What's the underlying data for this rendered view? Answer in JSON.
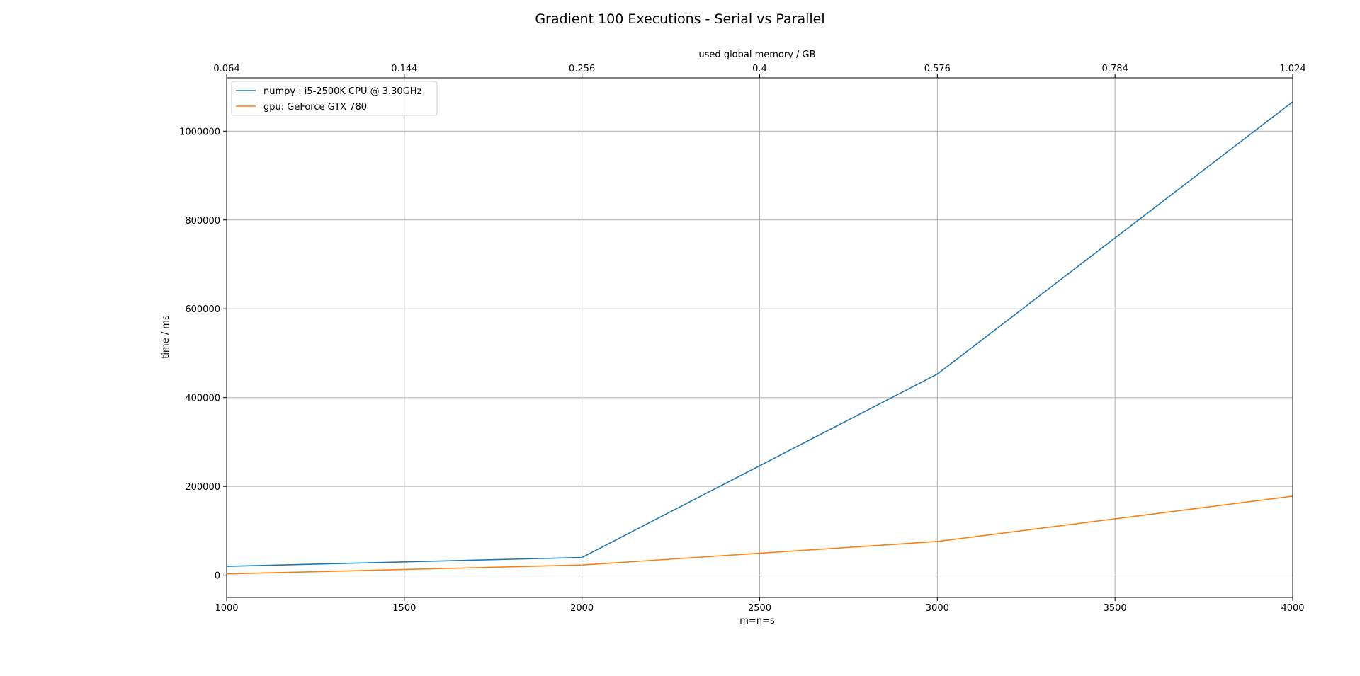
{
  "chart_data": {
    "type": "line",
    "title": "Gradient 100 Executions - Serial vs Parallel",
    "xlabel": "m=n=s",
    "ylabel": "time / ms",
    "x2label": "used global memory / GB",
    "x": [
      1000,
      2000,
      3000,
      4000
    ],
    "series": [
      {
        "name": "numpy : i5-2500K CPU @ 3.30GHz",
        "values": [
          20000,
          40000,
          453000,
          1066000
        ]
      },
      {
        "name": "gpu: GeForce GTX 780",
        "values": [
          3000,
          23000,
          76000,
          178000
        ]
      }
    ],
    "xlim": [
      1000,
      4000
    ],
    "ylim": [
      -50000,
      1120000
    ],
    "x_ticks": [
      1000,
      1500,
      2000,
      2500,
      3000,
      3500,
      4000
    ],
    "x_tick_labels": [
      "1000",
      "1500",
      "2000",
      "2500",
      "3000",
      "3500",
      "4000"
    ],
    "y_ticks": [
      0,
      200000,
      400000,
      600000,
      800000,
      1000000
    ],
    "y_tick_labels": [
      "0",
      "200000",
      "400000",
      "600000",
      "800000",
      "1000000"
    ],
    "x2_tick_labels": [
      "0.064",
      "0.144",
      "0.256",
      "0.4",
      "0.576",
      "0.784",
      "1.024"
    ],
    "grid": true,
    "legend_position": "top-left",
    "colors": [
      "#1f77b4",
      "#ff7f0e"
    ]
  }
}
